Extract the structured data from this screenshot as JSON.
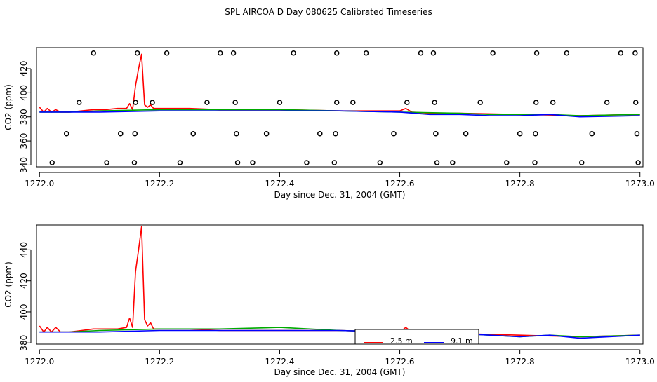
{
  "title": "SPL AIRCOA D  Day 080625  Calibrated Timeseries",
  "colors": {
    "background": "#ffffff",
    "axis": "#000000",
    "s25m": "#ff0000",
    "s91m": "#0000ff",
    "green": "#00aa00"
  },
  "chart_data": [
    {
      "type": "scatter+line",
      "xlabel": "Day since Dec. 31, 2004 (GMT)",
      "ylabel": "CO2 (ppm)",
      "xlim": [
        1271.995,
        1273.005
      ],
      "ylim": [
        338.5,
        437.5
      ],
      "xticks": [
        1272.0,
        1272.2,
        1272.4,
        1272.6,
        1272.8,
        1273.0
      ],
      "xtick_labels": [
        "1272.0",
        "1272.2",
        "1272.4",
        "1272.6",
        "1272.8",
        "1273.0"
      ],
      "yticks": [
        340,
        360,
        380,
        400,
        420
      ],
      "ytick_labels": [
        "340",
        "360",
        "380",
        "400",
        "420"
      ],
      "markers": {
        "shape": "open-circle",
        "rows": [
          {
            "y": 433,
            "x": [
              1272.09,
              1272.163,
              1272.212,
              1272.301,
              1272.323,
              1272.423,
              1272.495,
              1272.544,
              1272.635,
              1272.656,
              1272.755,
              1272.828,
              1272.878,
              1272.968,
              1272.992
            ]
          },
          {
            "y": 392,
            "x": [
              1272.066,
              1272.16,
              1272.188,
              1272.279,
              1272.326,
              1272.4,
              1272.495,
              1272.522,
              1272.612,
              1272.658,
              1272.734,
              1272.827,
              1272.855,
              1272.945,
              1272.993
            ]
          },
          {
            "y": 366,
            "x": [
              1272.045,
              1272.135,
              1272.159,
              1272.256,
              1272.328,
              1272.378,
              1272.467,
              1272.493,
              1272.59,
              1272.66,
              1272.71,
              1272.8,
              1272.826,
              1272.92,
              1272.995
            ]
          },
          {
            "y": 342,
            "x": [
              1272.021,
              1272.112,
              1272.158,
              1272.234,
              1272.33,
              1272.355,
              1272.445,
              1272.491,
              1272.567,
              1272.662,
              1272.688,
              1272.778,
              1272.825,
              1272.903,
              1272.997
            ]
          }
        ]
      },
      "series": [
        {
          "color": "#ff0000",
          "x": [
            1272.0,
            1272.007,
            1272.013,
            1272.02,
            1272.027,
            1272.035,
            1272.05,
            1272.07,
            1272.09,
            1272.11,
            1272.13,
            1272.145,
            1272.15,
            1272.155,
            1272.16,
            1272.165,
            1272.17,
            1272.175,
            1272.18,
            1272.185,
            1272.19,
            1272.2,
            1272.25,
            1272.3,
            1272.4,
            1272.5,
            1272.6,
            1272.61,
            1272.62,
            1272.65,
            1272.7,
            1272.8,
            1272.9,
            1273.0
          ],
          "y": [
            388,
            384,
            387,
            384,
            386,
            384,
            384,
            385,
            386,
            386,
            387,
            387,
            391,
            386,
            406,
            420,
            432,
            390,
            388,
            390,
            387,
            387,
            387,
            386,
            386,
            385,
            385,
            387,
            384,
            383,
            383,
            382,
            381,
            382
          ]
        },
        {
          "color": "#00aa00",
          "x": [
            1272.0,
            1272.05,
            1272.1,
            1272.2,
            1272.3,
            1272.4,
            1272.5,
            1272.6,
            1272.7,
            1272.75,
            1272.8,
            1272.85,
            1272.9,
            1273.0
          ],
          "y": [
            384,
            384,
            385,
            386,
            386,
            386,
            385,
            384,
            383,
            382,
            382,
            382,
            381,
            382
          ]
        },
        {
          "color": "#0000ff",
          "x": [
            1272.0,
            1272.05,
            1272.1,
            1272.2,
            1272.3,
            1272.4,
            1272.5,
            1272.6,
            1272.65,
            1272.7,
            1272.75,
            1272.8,
            1272.85,
            1272.9,
            1273.0
          ],
          "y": [
            384,
            384,
            384,
            385,
            385,
            385,
            385,
            384,
            382,
            382,
            381,
            381,
            382,
            380,
            381
          ]
        }
      ]
    },
    {
      "type": "line",
      "xlabel": "Day since Dec. 31, 2004 (GMT)",
      "ylabel": "CO2 (ppm)",
      "xlim": [
        1271.995,
        1273.005
      ],
      "ylim": [
        379.2,
        456
      ],
      "xticks": [
        1272.0,
        1272.2,
        1272.4,
        1272.6,
        1272.8,
        1273.0
      ],
      "xtick_labels": [
        "1272.0",
        "1272.2",
        "1272.4",
        "1272.6",
        "1272.8",
        "1273.0"
      ],
      "yticks": [
        380,
        400,
        420,
        440
      ],
      "ytick_labels": [
        "380",
        "400",
        "420",
        "440"
      ],
      "legend": {
        "placement": "bottom-center",
        "entries": [
          {
            "label": "2.5 m",
            "color": "#ff0000"
          },
          {
            "label": "9.1 m",
            "color": "#0000ff"
          }
        ]
      },
      "series": [
        {
          "name": "2.5 m",
          "color": "#ff0000",
          "x": [
            1272.0,
            1272.007,
            1272.013,
            1272.02,
            1272.027,
            1272.035,
            1272.05,
            1272.07,
            1272.09,
            1272.11,
            1272.13,
            1272.145,
            1272.15,
            1272.155,
            1272.16,
            1272.165,
            1272.17,
            1272.175,
            1272.18,
            1272.185,
            1272.19,
            1272.2,
            1272.25,
            1272.3,
            1272.4,
            1272.5,
            1272.6,
            1272.61,
            1272.62,
            1272.65,
            1272.7,
            1272.8,
            1272.9,
            1273.0
          ],
          "y": [
            391,
            387,
            390,
            387,
            390,
            387,
            387,
            388,
            389,
            389,
            389,
            390,
            396,
            390,
            426,
            440,
            455,
            395,
            391,
            393,
            389,
            389,
            389,
            388,
            388,
            388,
            387,
            390,
            387,
            386,
            386,
            385,
            384,
            385
          ]
        },
        {
          "color": "#00aa00",
          "x": [
            1272.0,
            1272.05,
            1272.1,
            1272.2,
            1272.3,
            1272.4,
            1272.5,
            1272.6,
            1272.65,
            1272.7,
            1272.75,
            1272.8,
            1272.85,
            1272.9,
            1273.0
          ],
          "y": [
            387,
            387,
            388,
            389,
            389,
            390,
            388,
            387,
            386,
            386,
            385,
            384,
            385,
            384,
            385
          ]
        },
        {
          "name": "9.1 m",
          "color": "#0000ff",
          "x": [
            1272.0,
            1272.05,
            1272.1,
            1272.2,
            1272.3,
            1272.4,
            1272.5,
            1272.6,
            1272.65,
            1272.7,
            1272.75,
            1272.8,
            1272.85,
            1272.9,
            1273.0
          ],
          "y": [
            387,
            387,
            387,
            388,
            388,
            388,
            388,
            387,
            386,
            386,
            385,
            384,
            385,
            383,
            385
          ]
        }
      ]
    }
  ]
}
